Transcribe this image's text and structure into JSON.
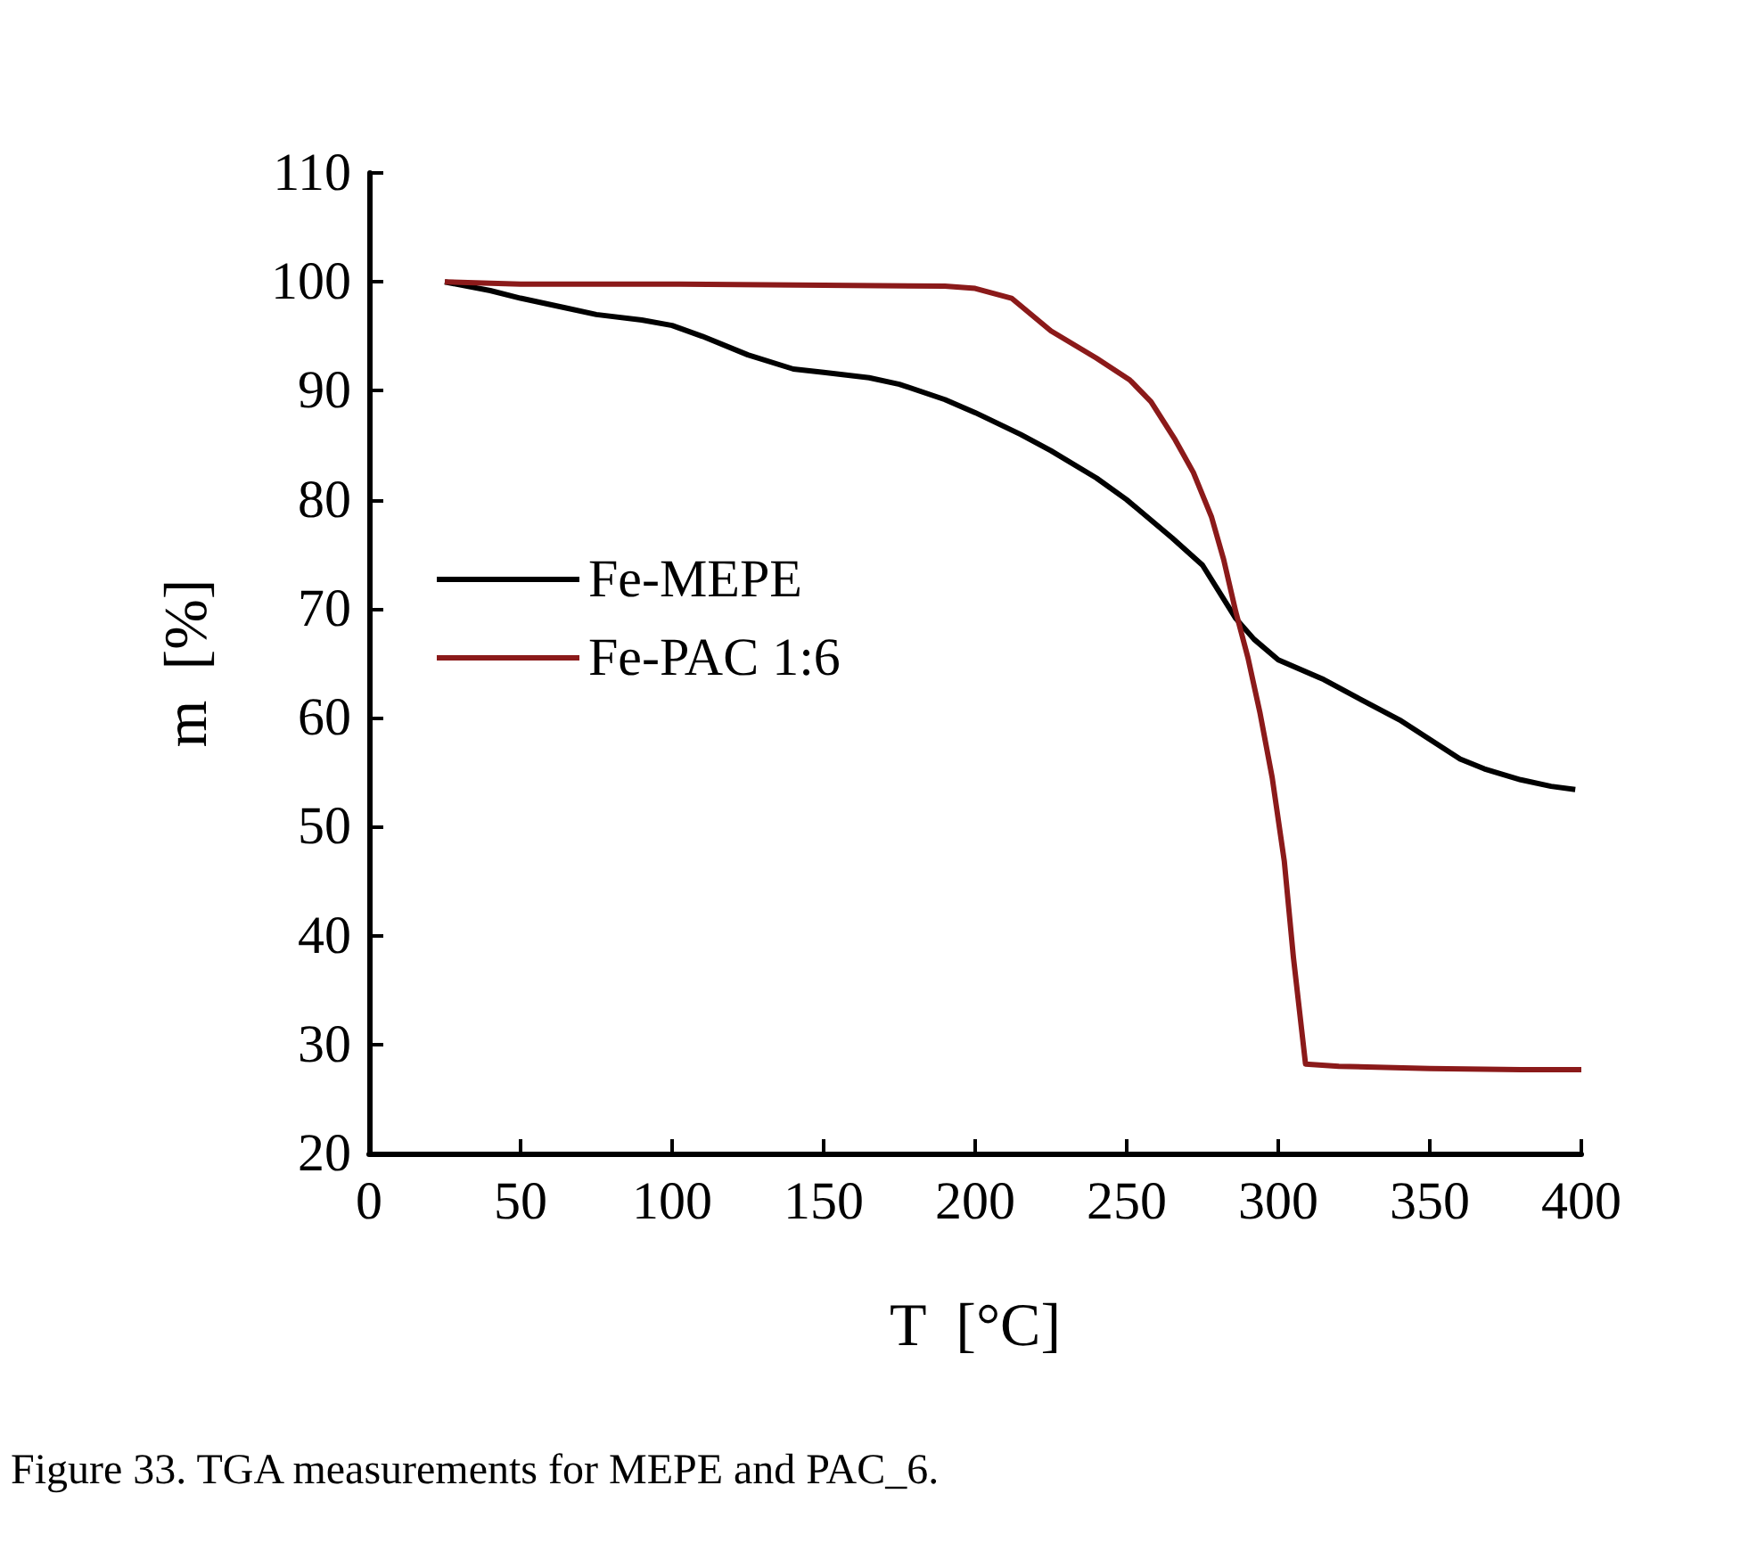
{
  "chart_data": {
    "type": "line",
    "xlabel": "T  [°C]",
    "ylabel": "m  [%]",
    "xlim": [
      0,
      400
    ],
    "xticks": [
      0,
      50,
      100,
      150,
      200,
      250,
      300,
      350,
      400
    ],
    "ylim": [
      20,
      110
    ],
    "yticks": [
      20,
      30,
      40,
      50,
      60,
      70,
      80,
      90,
      100,
      110
    ],
    "grid": false,
    "legend": "left",
    "marker": "none",
    "line_style": "solid",
    "annotations": [
      "Figure 33. TGA measurements for MEPE and PAC_6."
    ],
    "series": [
      {
        "name": "Fe-MEPE",
        "color": "#000000",
        "x": [
          25,
          40,
          50,
          65,
          75,
          90,
          100,
          110,
          125,
          140,
          150,
          165,
          175,
          190,
          200,
          215,
          225,
          240,
          250,
          265,
          275,
          286,
          292,
          300,
          315,
          325,
          340,
          350,
          360,
          368,
          380,
          390,
          398
        ],
        "values": [
          100,
          99.2,
          98.5,
          97.6,
          97,
          96.5,
          96,
          95,
          93.3,
          92,
          91.7,
          91.2,
          90.6,
          89.2,
          88,
          86,
          84.5,
          82,
          80,
          76.5,
          74,
          69.1,
          67.2,
          65.3,
          63.5,
          62,
          59.8,
          58,
          56.2,
          55.3,
          54.3,
          53.7,
          53.4
        ]
      },
      {
        "name": "Fe-PAC 1:6",
        "color": "#8b1a1a",
        "x": [
          25,
          50,
          100,
          150,
          190,
          200,
          212,
          225,
          240,
          251,
          258,
          266,
          272,
          278,
          282,
          286,
          290,
          294,
          298,
          302,
          305,
          309,
          320,
          350,
          380,
          400
        ],
        "values": [
          100,
          99.8,
          99.8,
          99.7,
          99.6,
          99.4,
          98.5,
          95.5,
          93,
          91,
          89,
          85.5,
          82.5,
          78.4,
          74.5,
          69.7,
          65.5,
          60.4,
          54.5,
          46.8,
          38,
          28.2,
          28,
          27.8,
          27.7,
          27.7
        ]
      }
    ]
  }
}
